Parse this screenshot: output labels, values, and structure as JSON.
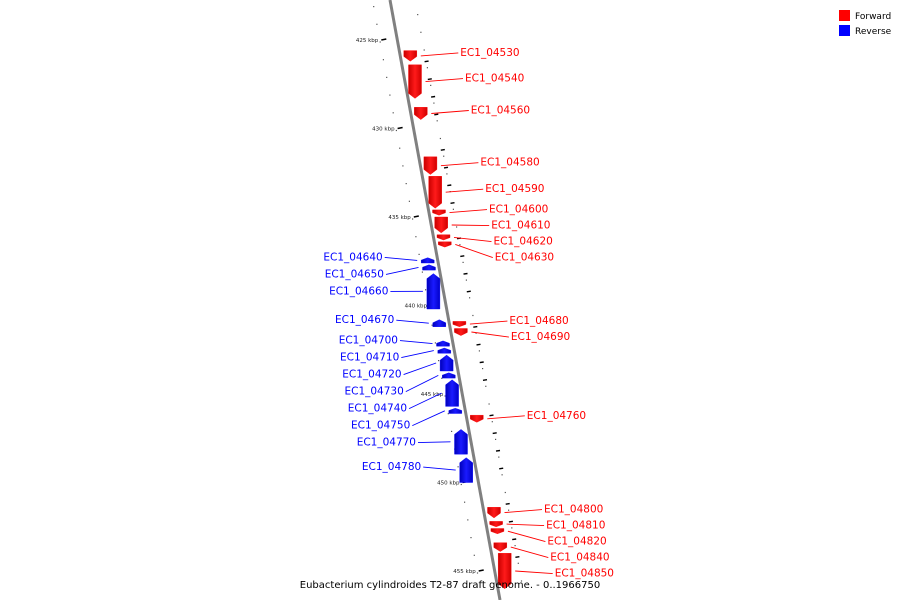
{
  "caption": "Eubacterium cylindroides T2-87 draft genome. - 0..1966750",
  "colors": {
    "forward": "#ff0000",
    "reverse": "#0000ff",
    "axis": "#777777"
  },
  "legend": [
    {
      "label": "Forward",
      "strand": "forward"
    },
    {
      "label": "Reverse",
      "strand": "reverse"
    }
  ],
  "chart_data": {
    "type": "diagram",
    "kbp_ticks": [
      {
        "label": "425 kbp",
        "kbp": 425
      },
      {
        "label": "430 kbp",
        "kbp": 430
      },
      {
        "label": "435 kbp",
        "kbp": 435
      },
      {
        "label": "440 kbp",
        "kbp": 440
      },
      {
        "label": "445 kbp",
        "kbp": 445
      },
      {
        "label": "450 kbp",
        "kbp": 450
      },
      {
        "label": "455 kbp",
        "kbp": 455
      }
    ],
    "genes": [
      {
        "label": "EC1_04530",
        "strand": "forward",
        "start_kbp": 425.6,
        "end_kbp": 426.2
      },
      {
        "label": "EC1_04540",
        "strand": "forward",
        "start_kbp": 426.4,
        "end_kbp": 428.3
      },
      {
        "label": "EC1_04560",
        "strand": "forward",
        "start_kbp": 428.8,
        "end_kbp": 429.5
      },
      {
        "label": "EC1_04580",
        "strand": "forward",
        "start_kbp": 431.6,
        "end_kbp": 432.6
      },
      {
        "label": "EC1_04590",
        "strand": "forward",
        "start_kbp": 432.7,
        "end_kbp": 434.5
      },
      {
        "label": "EC1_04600",
        "strand": "forward",
        "start_kbp": 434.6,
        "end_kbp": 434.9
      },
      {
        "label": "EC1_04610",
        "strand": "forward",
        "start_kbp": 435.0,
        "end_kbp": 435.9
      },
      {
        "label": "EC1_04620",
        "strand": "forward",
        "start_kbp": 436.0,
        "end_kbp": 436.3
      },
      {
        "label": "EC1_04630",
        "strand": "forward",
        "start_kbp": 436.4,
        "end_kbp": 436.7
      },
      {
        "label": "EC1_04640",
        "strand": "reverse",
        "start_kbp": 437.3,
        "end_kbp": 437.6
      },
      {
        "label": "EC1_04650",
        "strand": "reverse",
        "start_kbp": 437.7,
        "end_kbp": 438.0
      },
      {
        "label": "EC1_04660",
        "strand": "reverse",
        "start_kbp": 438.2,
        "end_kbp": 440.2
      },
      {
        "label": "EC1_04670",
        "strand": "reverse",
        "start_kbp": 440.8,
        "end_kbp": 441.2
      },
      {
        "label": "EC1_04680",
        "strand": "forward",
        "start_kbp": 440.9,
        "end_kbp": 441.2
      },
      {
        "label": "EC1_04690",
        "strand": "forward",
        "start_kbp": 441.3,
        "end_kbp": 441.7
      },
      {
        "label": "EC1_04700",
        "strand": "reverse",
        "start_kbp": 442.0,
        "end_kbp": 442.3
      },
      {
        "label": "EC1_04710",
        "strand": "reverse",
        "start_kbp": 442.4,
        "end_kbp": 442.7
      },
      {
        "label": "EC1_04720",
        "strand": "reverse",
        "start_kbp": 442.8,
        "end_kbp": 443.7
      },
      {
        "label": "EC1_04730",
        "strand": "reverse",
        "start_kbp": 443.8,
        "end_kbp": 444.1
      },
      {
        "label": "EC1_04740",
        "strand": "reverse",
        "start_kbp": 444.2,
        "end_kbp": 445.7
      },
      {
        "label": "EC1_04750",
        "strand": "reverse",
        "start_kbp": 445.8,
        "end_kbp": 446.1
      },
      {
        "label": "EC1_04760",
        "strand": "forward",
        "start_kbp": 446.2,
        "end_kbp": 446.6
      },
      {
        "label": "EC1_04770",
        "strand": "reverse",
        "start_kbp": 447.0,
        "end_kbp": 448.4
      },
      {
        "label": "EC1_04780",
        "strand": "reverse",
        "start_kbp": 448.6,
        "end_kbp": 450.0
      },
      {
        "label": "EC1_04800",
        "strand": "forward",
        "start_kbp": 451.4,
        "end_kbp": 452.0
      },
      {
        "label": "EC1_04810",
        "strand": "forward",
        "start_kbp": 452.2,
        "end_kbp": 452.5
      },
      {
        "label": "EC1_04820",
        "strand": "forward",
        "start_kbp": 452.6,
        "end_kbp": 452.9
      },
      {
        "label": "EC1_04840",
        "strand": "forward",
        "start_kbp": 453.4,
        "end_kbp": 453.9
      },
      {
        "label": "EC1_04850",
        "strand": "forward",
        "start_kbp": 454.0,
        "end_kbp": 456.0
      }
    ]
  }
}
